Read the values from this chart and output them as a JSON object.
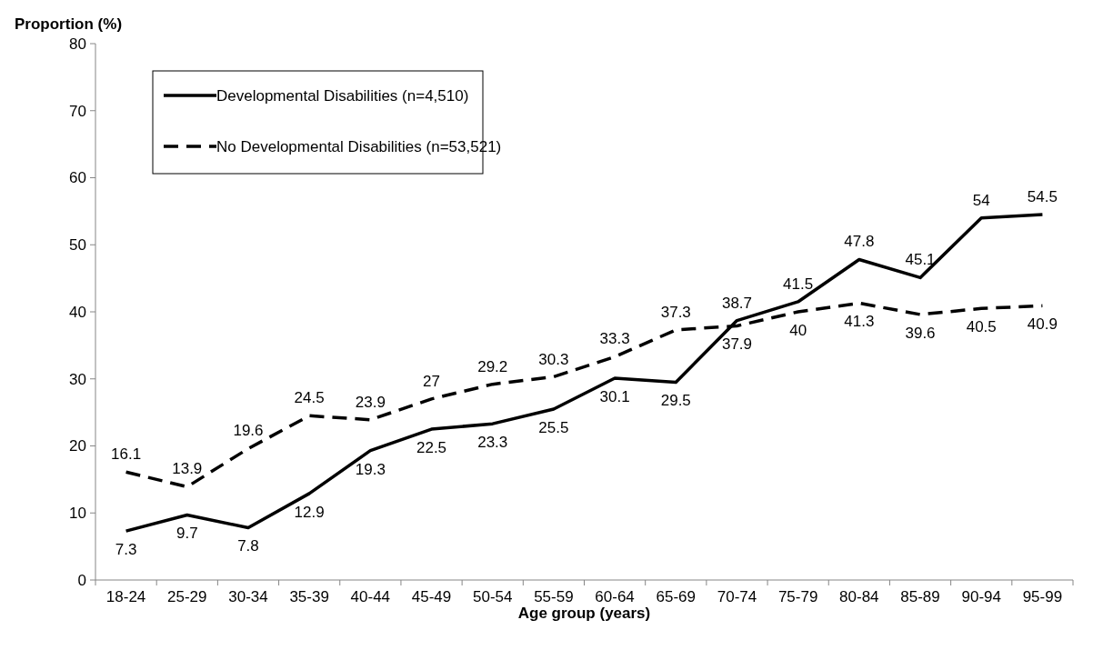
{
  "chart_data": {
    "type": "line",
    "xlabel": "Age group (years)",
    "ylabel": "Proportion (%)",
    "categories": [
      "18-24",
      "25-29",
      "30-34",
      "35-39",
      "40-44",
      "45-49",
      "50-54",
      "55-59",
      "60-64",
      "65-69",
      "70-74",
      "75-79",
      "80-84",
      "85-89",
      "90-94",
      "95-99"
    ],
    "series": [
      {
        "name": "Developmental Disabilities (n=4,510)",
        "color": "#000000",
        "line_style": "solid",
        "values": [
          7.3,
          9.7,
          7.8,
          12.9,
          19.3,
          22.5,
          23.3,
          25.5,
          30.1,
          29.5,
          38.7,
          41.5,
          47.8,
          45.1,
          54,
          54.5
        ]
      },
      {
        "name": "No Developmental Disabilities (n=53,521)",
        "color": "#000000",
        "line_style": "dashed",
        "values": [
          16.1,
          13.9,
          19.6,
          24.5,
          23.9,
          27,
          29.2,
          30.3,
          33.3,
          37.3,
          37.9,
          40,
          41.3,
          39.6,
          40.5,
          40.9
        ]
      }
    ],
    "ylim": [
      0,
      80
    ],
    "yticks": [
      0,
      10,
      20,
      30,
      40,
      50,
      60,
      70,
      80
    ],
    "grid": false,
    "legend": "top left",
    "data_labels": true,
    "marker": "none"
  }
}
